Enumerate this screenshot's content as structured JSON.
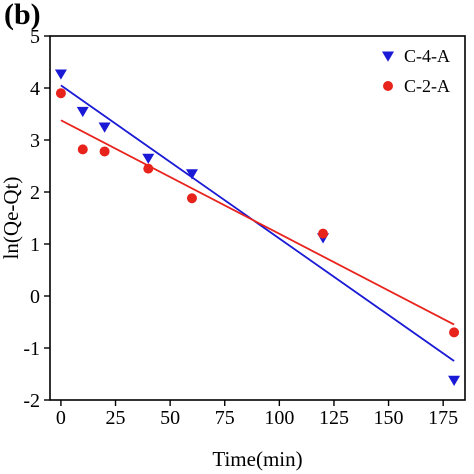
{
  "panel_label": "(b)",
  "chart_data": {
    "type": "scatter",
    "xlabel": "Time(min)",
    "ylabel": "ln(Qe-Qt)",
    "xlim": [
      -5,
      185
    ],
    "ylim": [
      -2,
      5
    ],
    "xticks": [
      0,
      25,
      50,
      75,
      100,
      125,
      150,
      175
    ],
    "yticks": [
      -2,
      -1,
      0,
      1,
      2,
      3,
      4,
      5
    ],
    "legend_position": "top-right",
    "series": [
      {
        "name": "C-4-A",
        "marker": "triangle-down",
        "color": "#1a1ad6",
        "x": [
          0,
          10,
          20,
          40,
          60,
          120,
          180
        ],
        "y": [
          4.27,
          3.55,
          3.25,
          2.65,
          2.35,
          1.12,
          -1.62
        ],
        "fit": {
          "x": [
            0,
            180
          ],
          "y": [
            4.05,
            -1.25
          ]
        }
      },
      {
        "name": "C-2-A",
        "marker": "circle",
        "color": "#e8231c",
        "x": [
          0,
          10,
          20,
          40,
          60,
          120,
          180
        ],
        "y": [
          3.9,
          2.82,
          2.78,
          2.45,
          1.88,
          1.2,
          -0.7
        ],
        "fit": {
          "x": [
            0,
            180
          ],
          "y": [
            3.38,
            -0.55
          ]
        }
      }
    ]
  }
}
